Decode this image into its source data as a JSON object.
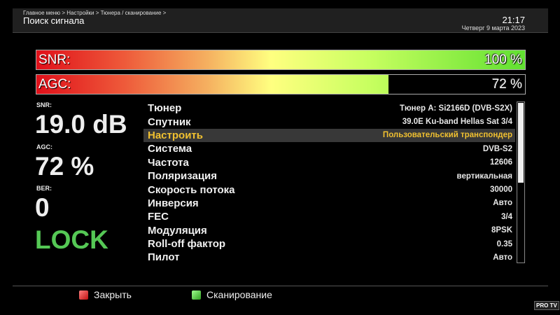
{
  "header": {
    "breadcrumb": "Главное меню > Настройки > Тюнера / сканирование >",
    "title": "Поиск сигнала",
    "time": "21:17",
    "date": "Четверг  9 марта 2023"
  },
  "bars": {
    "snr": {
      "label": "SNR:",
      "value_text": "100 %",
      "percent": 100
    },
    "agc": {
      "label": "AGC:",
      "value_text": "72 %",
      "percent": 72
    }
  },
  "stats": {
    "snr_label": "SNR:",
    "snr_value": "19.0 dB",
    "agc_label": "AGC:",
    "agc_value": "72 %",
    "ber_label": "BER:",
    "ber_value": "0",
    "status": "LOCK"
  },
  "list": [
    {
      "label": "Тюнер",
      "value": "Тюнер A: Si2166D (DVB-S2X)"
    },
    {
      "label": "Спутник",
      "value": "39.0E Ku-band Hellas Sat 3/4"
    },
    {
      "label": "Настроить",
      "value": "Пользовательский транспондер",
      "selected": true
    },
    {
      "label": "Система",
      "value": "DVB-S2"
    },
    {
      "label": "Частота",
      "value": "12606"
    },
    {
      "label": "Поляризация",
      "value": "вертикальная"
    },
    {
      "label": "Скорость потока",
      "value": "30000"
    },
    {
      "label": "Инверсия",
      "value": "Авто"
    },
    {
      "label": "FEC",
      "value": "3/4"
    },
    {
      "label": "Модуляция",
      "value": "8PSK"
    },
    {
      "label": "Roll-off фактор",
      "value": "0.35"
    },
    {
      "label": "Пилот",
      "value": "Авто"
    }
  ],
  "scrollbar": {
    "visible_fraction": 0.5
  },
  "footer": {
    "close": "Закрыть",
    "scan": "Сканирование",
    "close_color": "#d02020",
    "scan_color": "#40c040",
    "logo": "PRO TV"
  },
  "colors": {
    "selected_text": "#f0c030",
    "lock": "#55c855"
  }
}
